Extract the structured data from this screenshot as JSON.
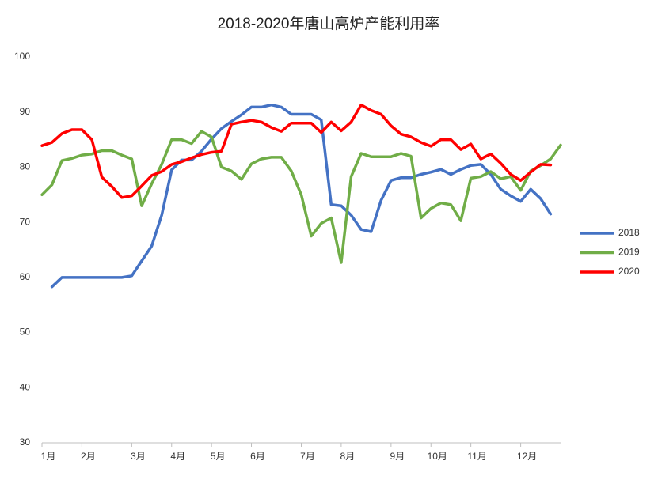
{
  "chart_data": {
    "type": "line",
    "title": "2018-2020年唐山高炉产能利用率",
    "categories": [
      "1月",
      null,
      null,
      null,
      "2月",
      null,
      null,
      null,
      null,
      "3月",
      null,
      null,
      null,
      "4月",
      null,
      null,
      null,
      "5月",
      null,
      null,
      null,
      "6月",
      null,
      null,
      null,
      null,
      "7月",
      null,
      null,
      null,
      "8月",
      null,
      null,
      null,
      null,
      "9月",
      null,
      null,
      null,
      "10月",
      null,
      null,
      null,
      "11月",
      null,
      null,
      null,
      null,
      "12月",
      null,
      null,
      null,
      null
    ],
    "series": [
      {
        "name": "2018",
        "color": "#4472c4",
        "values": [
          null,
          58.3,
          60,
          60,
          60,
          60,
          60,
          60,
          60,
          60.3,
          63,
          65.7,
          71.3,
          79.5,
          81.3,
          81.3,
          82.9,
          85.1,
          87,
          88.3,
          89.5,
          90.9,
          90.9,
          91.3,
          90.9,
          89.6,
          89.6,
          89.6,
          88.6,
          73.2,
          73,
          71.3,
          68.7,
          68.3,
          74,
          77.6,
          78.1,
          78.1,
          78.7,
          79.1,
          79.6,
          78.7,
          79.6,
          80.3,
          80.5,
          78.7,
          76,
          74.8,
          73.8,
          76,
          74.3,
          71.5,
          null
        ]
      },
      {
        "name": "2019",
        "color": "#70ad47",
        "values": [
          75,
          76.8,
          81.2,
          81.6,
          82.2,
          82.4,
          83,
          83,
          82.2,
          81.5,
          73,
          77,
          80.5,
          85,
          85,
          84.3,
          86.5,
          85.5,
          80,
          79.3,
          77.8,
          80.6,
          81.5,
          81.8,
          81.8,
          79.3,
          75,
          67.5,
          69.8,
          70.8,
          62.7,
          78.3,
          82.5,
          81.9,
          81.9,
          81.9,
          82.5,
          82,
          70.8,
          72.5,
          73.5,
          73.2,
          70.3,
          78,
          78.3,
          79.2,
          77.9,
          78.3,
          75.8,
          79.3,
          80.3,
          81.5,
          84
        ]
      },
      {
        "name": "2020",
        "color": "#ff0000",
        "values": [
          83.9,
          84.5,
          86.1,
          86.8,
          86.8,
          85,
          78.2,
          76.5,
          74.5,
          74.8,
          76.6,
          78.5,
          79.2,
          80.5,
          81,
          81.7,
          82.3,
          82.7,
          82.9,
          87.8,
          88.2,
          88.5,
          88.2,
          87.2,
          86.5,
          88,
          88,
          88,
          86.3,
          88.2,
          86.6,
          88.2,
          91.3,
          90.3,
          89.6,
          87.5,
          86,
          85.5,
          84.5,
          83.8,
          85,
          85,
          83.2,
          84.2,
          81.5,
          82.4,
          80.7,
          78.7,
          77.6,
          79.1,
          80.5,
          80.4,
          null
        ]
      }
    ],
    "ylim": [
      30,
      100
    ],
    "yticks": [
      30,
      40,
      50,
      60,
      70,
      80,
      90,
      100
    ],
    "grid": false,
    "legend": "right"
  }
}
